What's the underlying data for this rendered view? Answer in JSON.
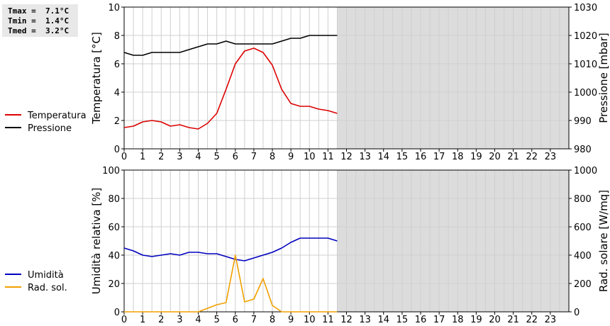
{
  "stats": {
    "tmax": "Tmax =  7.1°C",
    "tmin": "Tmin =  1.4°C",
    "tmed": "Tmed =  3.2°C"
  },
  "chart_data": [
    {
      "type": "line",
      "xlim": [
        0,
        24
      ],
      "x_ticks": [
        "0",
        "1",
        "2",
        "3",
        "4",
        "5",
        "6",
        "7",
        "8",
        "9",
        "10",
        "11",
        "12",
        "13",
        "14",
        "15",
        "16",
        "17",
        "18",
        "19",
        "20",
        "21",
        "22",
        "23"
      ],
      "shaded_from_x": 11.5,
      "ylabel": "Temperatura [°C]",
      "ylim": [
        0,
        10
      ],
      "y_ticks": [
        "0",
        "2",
        "4",
        "6",
        "8",
        "10"
      ],
      "y2label": "Pressione [mbar]",
      "y2lim": [
        980,
        1030
      ],
      "y2_ticks": [
        "980",
        "990",
        "1000",
        "1010",
        "1020",
        "1030"
      ],
      "legend_position": "left",
      "series": [
        {
          "name": "Temperatura",
          "axis": "left",
          "color": "#dd0000",
          "x": [
            0,
            0.5,
            1,
            1.5,
            2,
            2.5,
            3,
            3.5,
            4,
            4.5,
            5,
            5.5,
            6,
            6.5,
            7,
            7.5,
            8,
            8.5,
            9,
            9.5,
            10,
            10.5,
            11,
            11.5
          ],
          "y": [
            1.5,
            1.6,
            1.9,
            2.0,
            1.9,
            1.6,
            1.7,
            1.5,
            1.4,
            1.8,
            2.5,
            4.2,
            6.0,
            6.9,
            7.1,
            6.8,
            5.9,
            4.2,
            3.2,
            3.0,
            3.0,
            2.8,
            2.7,
            2.5
          ]
        },
        {
          "name": "Pressione",
          "axis": "right",
          "color": "#000000",
          "x": [
            0,
            0.5,
            1,
            1.5,
            2,
            2.5,
            3,
            3.5,
            4,
            4.5,
            5,
            5.5,
            6,
            6.5,
            7,
            7.5,
            8,
            8.5,
            9,
            9.5,
            10,
            10.5,
            11,
            11.5
          ],
          "y": [
            1014,
            1013,
            1013,
            1014,
            1014,
            1014,
            1014,
            1015,
            1016,
            1017,
            1017,
            1018,
            1017,
            1017,
            1017,
            1017,
            1017,
            1018,
            1019,
            1019,
            1020,
            1020,
            1020,
            1020
          ]
        }
      ]
    },
    {
      "type": "line",
      "xlim": [
        0,
        24
      ],
      "x_ticks": [
        "0",
        "1",
        "2",
        "3",
        "4",
        "5",
        "6",
        "7",
        "8",
        "9",
        "10",
        "11",
        "12",
        "13",
        "14",
        "15",
        "16",
        "17",
        "18",
        "19",
        "20",
        "21",
        "22",
        "23"
      ],
      "shaded_from_x": 11.5,
      "ylabel": "Umidità relativa [%]",
      "ylim": [
        0,
        100
      ],
      "y_ticks": [
        "0",
        "20",
        "40",
        "60",
        "80",
        "100"
      ],
      "y2label": "Rad. solare [W/mq]",
      "y2lim": [
        0,
        1000
      ],
      "y2_ticks": [
        "0",
        "200",
        "400",
        "600",
        "800",
        "1000"
      ],
      "legend_position": "left",
      "series": [
        {
          "name": "Umidità",
          "axis": "left",
          "color": "#0000c0",
          "x": [
            0,
            0.5,
            1,
            1.5,
            2,
            2.5,
            3,
            3.5,
            4,
            4.5,
            5,
            5.5,
            6,
            6.5,
            7,
            7.5,
            8,
            8.5,
            9,
            9.5,
            10,
            10.5,
            11,
            11.5
          ],
          "y": [
            45,
            43,
            40,
            39,
            40,
            41,
            40,
            42,
            42,
            41,
            41,
            39,
            37,
            36,
            38,
            40,
            42,
            45,
            49,
            52,
            52,
            52,
            52,
            50
          ]
        },
        {
          "name": "Rad. sol.",
          "axis": "right",
          "color": "#f0a000",
          "x": [
            0,
            0.5,
            1,
            1.5,
            2,
            2.5,
            3,
            3.5,
            4,
            4.5,
            5,
            5.5,
            6,
            6.5,
            7,
            7.5,
            8,
            8.5,
            9,
            9.5,
            10,
            10.5,
            11,
            11.5
          ],
          "y": [
            0,
            0,
            0,
            0,
            0,
            0,
            0,
            0,
            0,
            25,
            50,
            65,
            400,
            70,
            90,
            235,
            45,
            0,
            0,
            0,
            0,
            0,
            0,
            0
          ]
        }
      ]
    }
  ]
}
